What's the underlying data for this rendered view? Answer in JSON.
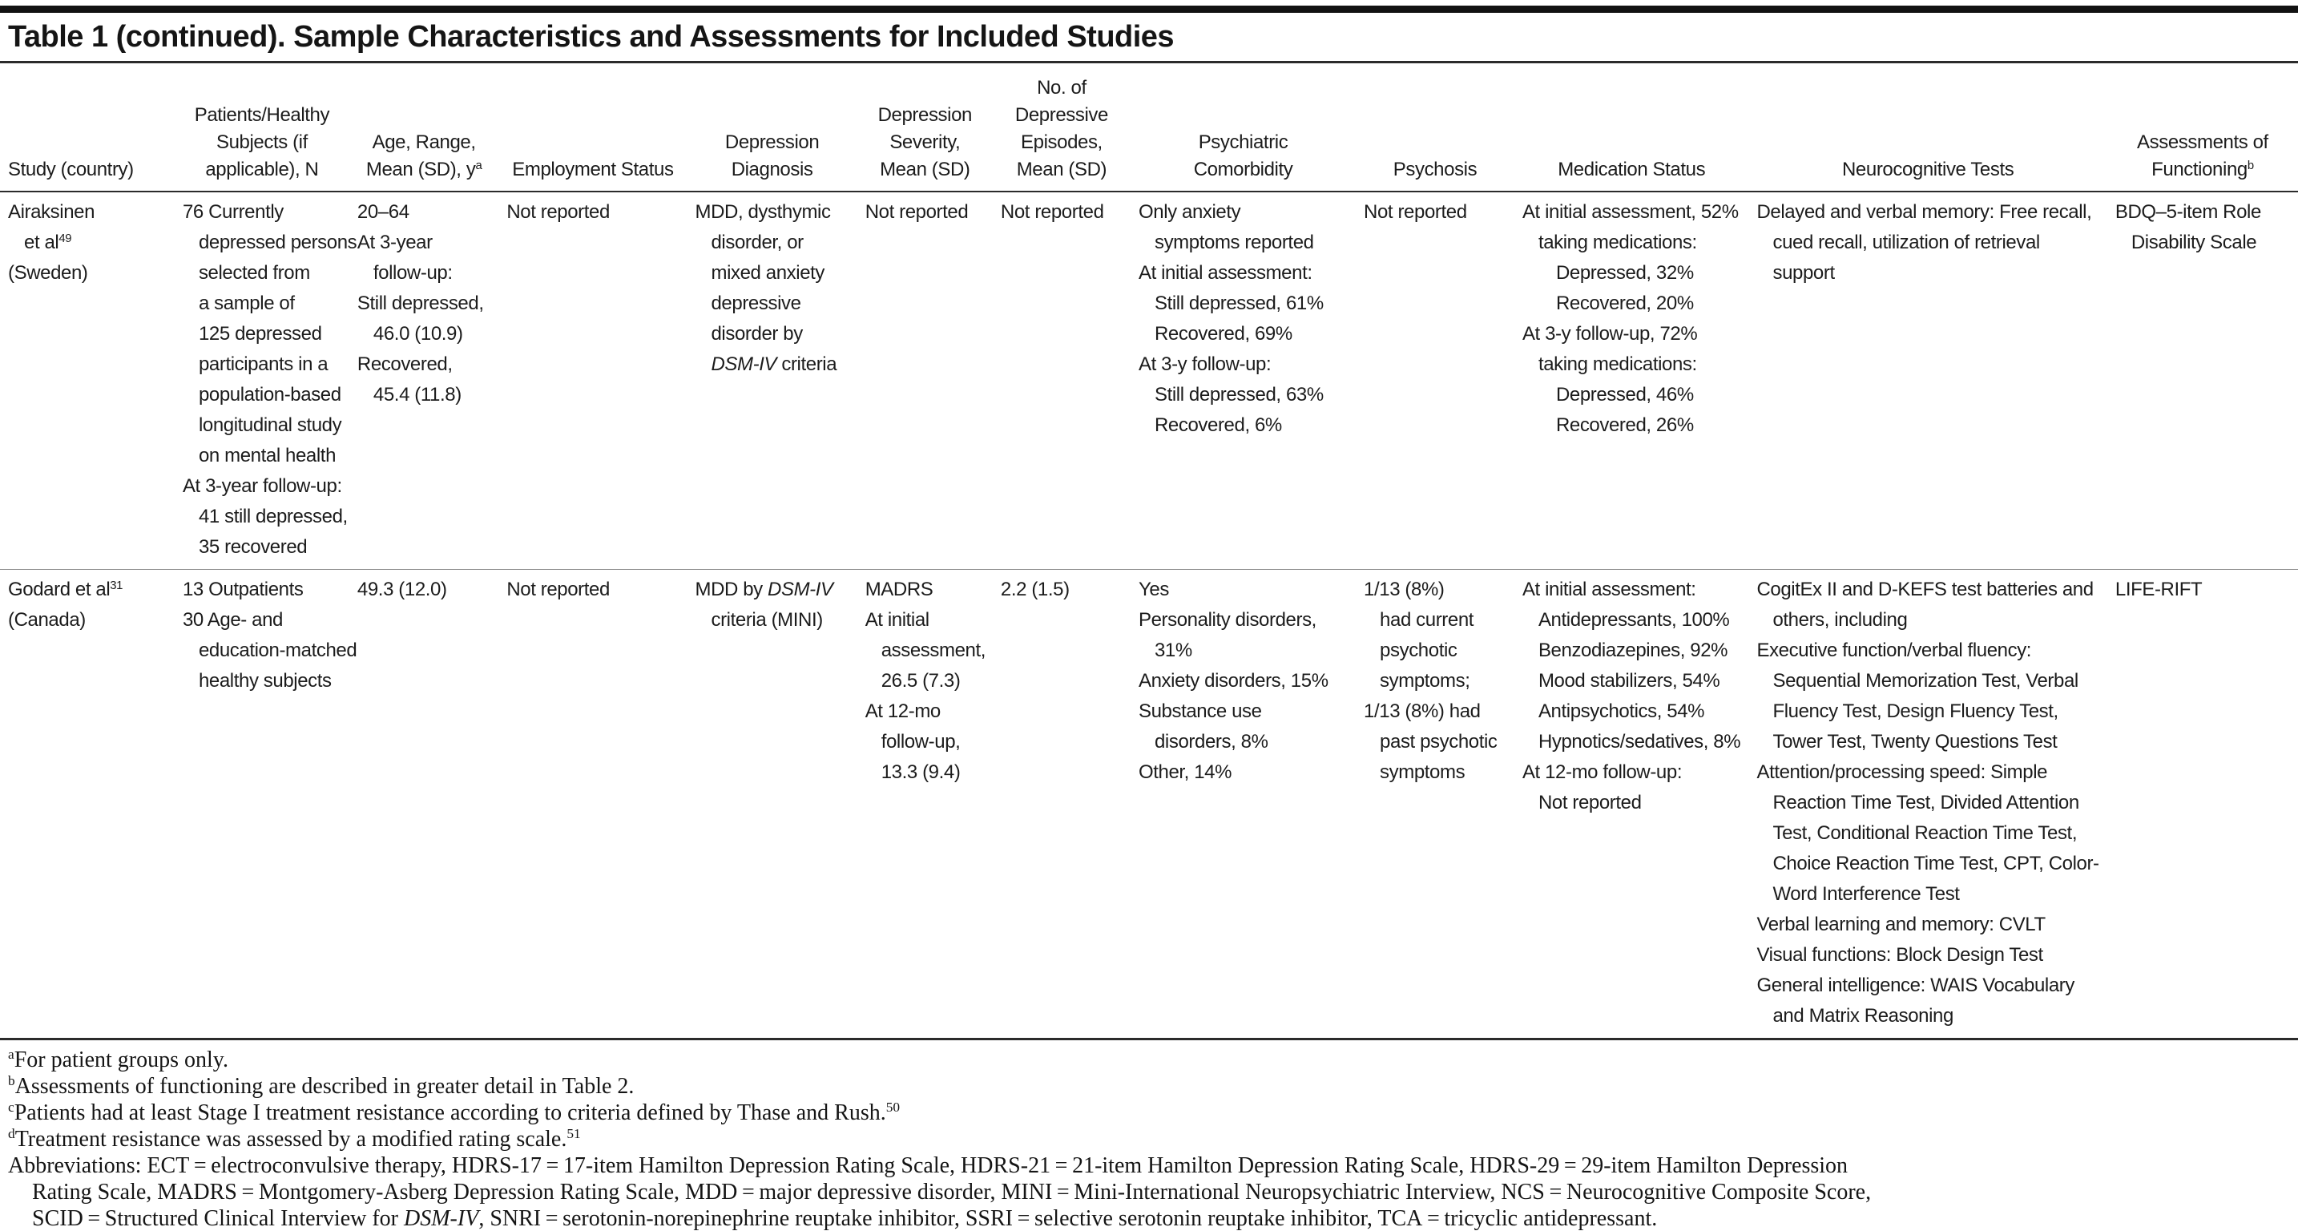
{
  "title": "Table 1 (continued). Sample Characteristics and Assessments for Included Studies",
  "columns": [
    {
      "key": "study",
      "label": "Study (country)",
      "width": 7.6,
      "align": "left"
    },
    {
      "key": "patients",
      "label": "Patients/Healthy\nSubjects (if\napplicable), N",
      "width": 7.6,
      "align": "center"
    },
    {
      "key": "age",
      "label": "Age, Range,\nMean (SD), y^{a}",
      "width": 6.5,
      "align": "center"
    },
    {
      "key": "employment",
      "label": "Employment Status",
      "width": 8.2,
      "align": "center"
    },
    {
      "key": "diagnosis",
      "label": "Depression\nDiagnosis",
      "width": 7.4,
      "align": "center"
    },
    {
      "key": "severity",
      "label": "Depression\nSeverity,\nMean (SD)",
      "width": 5.9,
      "align": "center"
    },
    {
      "key": "episodes",
      "label": "No. of\nDepressive\nEpisodes,\nMean (SD)",
      "width": 6.0,
      "align": "center"
    },
    {
      "key": "comorbidity",
      "label": "Psychiatric\nComorbidity",
      "width": 9.8,
      "align": "center"
    },
    {
      "key": "psychosis",
      "label": "Psychosis",
      "width": 6.9,
      "align": "center"
    },
    {
      "key": "medication",
      "label": "Medication Status",
      "width": 10.2,
      "align": "center"
    },
    {
      "key": "neurocognitive",
      "label": "Neurocognitive Tests",
      "width": 15.6,
      "align": "center"
    },
    {
      "key": "functioning",
      "label": "Assessments of\nFunctioning^{b}",
      "width": 8.3,
      "align": "center"
    }
  ],
  "studies": [
    {
      "id": "airaksinen",
      "cells": {
        "study": [
          {
            "t": "Airaksinen",
            "i": 0
          },
          {
            "t": "et al^{49}",
            "i": 1
          },
          {
            "t": "(Sweden)",
            "i": 0
          }
        ],
        "patients": [
          {
            "t": "76 Currently",
            "i": 0
          },
          {
            "t": "depressed persons",
            "i": 1
          },
          {
            "t": "selected from",
            "i": 1
          },
          {
            "t": "a sample of",
            "i": 1
          },
          {
            "t": "125 depressed",
            "i": 1
          },
          {
            "t": "participants in a",
            "i": 1
          },
          {
            "t": "population-based",
            "i": 1
          },
          {
            "t": "longitudinal study",
            "i": 1
          },
          {
            "t": "on mental health",
            "i": 1
          },
          {
            "t": "At 3-year follow-up:",
            "i": 0
          },
          {
            "t": "41 still depressed,",
            "i": 1
          },
          {
            "t": "35 recovered",
            "i": 1
          }
        ],
        "age": [
          {
            "t": "20–64",
            "i": 0
          },
          {
            "t": "At 3-year",
            "i": 0
          },
          {
            "t": "follow-up:",
            "i": 1
          },
          {
            "t": "Still depressed,",
            "i": 0
          },
          {
            "t": "46.0 (10.9)",
            "i": 1
          },
          {
            "t": "Recovered,",
            "i": 0
          },
          {
            "t": "45.4 (11.8)",
            "i": 1
          }
        ],
        "employment": [
          {
            "t": "Not reported",
            "i": 0
          }
        ],
        "diagnosis": [
          {
            "t": "MDD, dysthymic",
            "i": 0
          },
          {
            "t": "disorder, or",
            "i": 1
          },
          {
            "t": "mixed anxiety",
            "i": 1
          },
          {
            "t": "depressive",
            "i": 1
          },
          {
            "t": "disorder by",
            "i": 1
          },
          {
            "t": "*DSM-IV* criteria",
            "i": 1
          }
        ],
        "severity": [
          {
            "t": "Not reported",
            "i": 0
          }
        ],
        "episodes": [
          {
            "t": "Not reported",
            "i": 0
          }
        ],
        "comorbidity": [
          {
            "t": "Only anxiety",
            "i": 0
          },
          {
            "t": "symptoms reported",
            "i": 1
          },
          {
            "t": "At initial assessment:",
            "i": 0
          },
          {
            "t": "Still depressed, 61%",
            "i": 1
          },
          {
            "t": "Recovered, 69%",
            "i": 1
          },
          {
            "t": "At 3-y follow-up:",
            "i": 0
          },
          {
            "t": "Still depressed, 63%",
            "i": 1
          },
          {
            "t": "Recovered, 6%",
            "i": 1
          }
        ],
        "psychosis": [
          {
            "t": "Not reported",
            "i": 0
          }
        ],
        "medication": [
          {
            "t": "At initial assessment, 52%",
            "i": 0
          },
          {
            "t": "taking medications:",
            "i": 1
          },
          {
            "t": "Depressed, 32%",
            "i": 2
          },
          {
            "t": "Recovered, 20%",
            "i": 2
          },
          {
            "t": "At 3-y follow-up, 72%",
            "i": 0
          },
          {
            "t": "taking medications:",
            "i": 1
          },
          {
            "t": "Depressed, 46%",
            "i": 2
          },
          {
            "t": "Recovered, 26%",
            "i": 2
          }
        ],
        "neurocognitive": [
          {
            "t": "Delayed and verbal memory: Free recall,",
            "i": 0
          },
          {
            "t": "cued recall, utilization of retrieval",
            "i": 1
          },
          {
            "t": "support",
            "i": 1
          }
        ],
        "functioning": [
          {
            "t": "BDQ–5-item Role",
            "i": 0
          },
          {
            "t": "Disability Scale",
            "i": 1
          }
        ]
      }
    },
    {
      "id": "godard",
      "cells": {
        "study": [
          {
            "t": "Godard et al^{31}",
            "i": 0
          },
          {
            "t": "(Canada)",
            "i": 0
          }
        ],
        "patients": [
          {
            "t": "13 Outpatients",
            "i": 0
          },
          {
            "t": "30 Age- and",
            "i": 0
          },
          {
            "t": "education-matched",
            "i": 1
          },
          {
            "t": "healthy subjects",
            "i": 1
          }
        ],
        "age": [
          {
            "t": "49.3 (12.0)",
            "i": 0
          }
        ],
        "employment": [
          {
            "t": "Not reported",
            "i": 0
          }
        ],
        "diagnosis": [
          {
            "t": "MDD by *DSM-IV*",
            "i": 0
          },
          {
            "t": "criteria (MINI)",
            "i": 1
          }
        ],
        "severity": [
          {
            "t": "MADRS",
            "i": 0
          },
          {
            "t": "At initial",
            "i": 0
          },
          {
            "t": "assessment,",
            "i": 1
          },
          {
            "t": "26.5 (7.3)",
            "i": 1
          },
          {
            "t": "At 12-mo",
            "i": 0
          },
          {
            "t": "follow-up,",
            "i": 1
          },
          {
            "t": "13.3 (9.4)",
            "i": 1
          }
        ],
        "episodes": [
          {
            "t": "2.2 (1.5)",
            "i": 0
          }
        ],
        "comorbidity": [
          {
            "t": "Yes",
            "i": 0
          },
          {
            "t": "Personality disorders,",
            "i": 0
          },
          {
            "t": "31%",
            "i": 1
          },
          {
            "t": "Anxiety disorders, 15%",
            "i": 0
          },
          {
            "t": "Substance use",
            "i": 0
          },
          {
            "t": "disorders, 8%",
            "i": 1
          },
          {
            "t": "Other, 14%",
            "i": 0
          }
        ],
        "psychosis": [
          {
            "t": "1/13 (8%)",
            "i": 0
          },
          {
            "t": "had current",
            "i": 1
          },
          {
            "t": "psychotic",
            "i": 1
          },
          {
            "t": "symptoms;",
            "i": 1
          },
          {
            "t": "1/13 (8%) had",
            "i": 0
          },
          {
            "t": "past psychotic",
            "i": 1
          },
          {
            "t": "symptoms",
            "i": 1
          }
        ],
        "medication": [
          {
            "t": "At initial assessment:",
            "i": 0
          },
          {
            "t": "Antidepressants, 100%",
            "i": 1
          },
          {
            "t": "Benzodiazepines, 92%",
            "i": 1
          },
          {
            "t": "Mood stabilizers, 54%",
            "i": 1
          },
          {
            "t": "Antipsychotics, 54%",
            "i": 1
          },
          {
            "t": "Hypnotics/sedatives, 8%",
            "i": 1
          },
          {
            "t": "At 12-mo follow-up:",
            "i": 0
          },
          {
            "t": "Not reported",
            "i": 1
          }
        ],
        "neurocognitive": [
          {
            "t": "CogitEx II and D-KEFS test batteries and",
            "i": 0
          },
          {
            "t": "others, including",
            "i": 1
          },
          {
            "t": "Executive function/verbal fluency:",
            "i": 0
          },
          {
            "t": "Sequential Memorization Test, Verbal",
            "i": 1
          },
          {
            "t": "Fluency Test, Design Fluency Test,",
            "i": 1
          },
          {
            "t": "Tower Test, Twenty Questions Test",
            "i": 1
          },
          {
            "t": "Attention/processing speed: Simple",
            "i": 0
          },
          {
            "t": "Reaction Time Test, Divided Attention",
            "i": 1
          },
          {
            "t": "Test, Conditional Reaction Time Test,",
            "i": 1
          },
          {
            "t": "Choice Reaction Time Test, CPT, Color-",
            "i": 1
          },
          {
            "t": "Word Interference Test",
            "i": 1
          },
          {
            "t": "Verbal learning and memory: CVLT",
            "i": 0
          },
          {
            "t": "Visual functions: Block Design Test",
            "i": 0
          },
          {
            "t": "General intelligence: WAIS Vocabulary",
            "i": 0
          },
          {
            "t": "and Matrix Reasoning",
            "i": 1
          }
        ],
        "functioning": [
          {
            "t": "LIFE-RIFT",
            "i": 0
          }
        ]
      }
    }
  ],
  "footnotes": [
    {
      "t": "^{a}For patient groups only.",
      "i": 0
    },
    {
      "t": "^{b}Assessments of functioning are described in greater detail in Table 2.",
      "i": 0
    },
    {
      "t": "^{c}Patients had at least Stage I treatment resistance according to criteria defined by Thase and Rush.^{50}",
      "i": 0
    },
    {
      "t": "^{d}Treatment resistance was assessed by a modified rating scale.^{51}",
      "i": 0
    },
    {
      "t": "Abbreviations: ECT = electroconvulsive therapy, HDRS-17 = 17-item Hamilton Depression Rating Scale, HDRS-21 = 21-item Hamilton Depression Rating Scale, HDRS-29 = 29-item Hamilton Depression",
      "i": 0
    },
    {
      "t": "Rating Scale, MADRS = Montgomery-Asberg Depression Rating Scale, MDD = major depressive disorder, MINI = Mini-International Neuropsychiatric Interview, NCS = Neurocognitive Composite Score,",
      "i": 1
    },
    {
      "t": "SCID = Structured Clinical Interview for *DSM-IV*, SNRI = serotonin-norepinephrine reuptake inhibitor, SSRI = selective serotonin reuptake inhibitor, TCA = tricyclic antidepressant.",
      "i": 1
    }
  ],
  "colors": {
    "text": "#1c1c1c",
    "rule_heavy": "#121212",
    "rule_medium": "#2b2b2b",
    "row_separator": "#8c8c8c",
    "background": "#ffffff"
  }
}
